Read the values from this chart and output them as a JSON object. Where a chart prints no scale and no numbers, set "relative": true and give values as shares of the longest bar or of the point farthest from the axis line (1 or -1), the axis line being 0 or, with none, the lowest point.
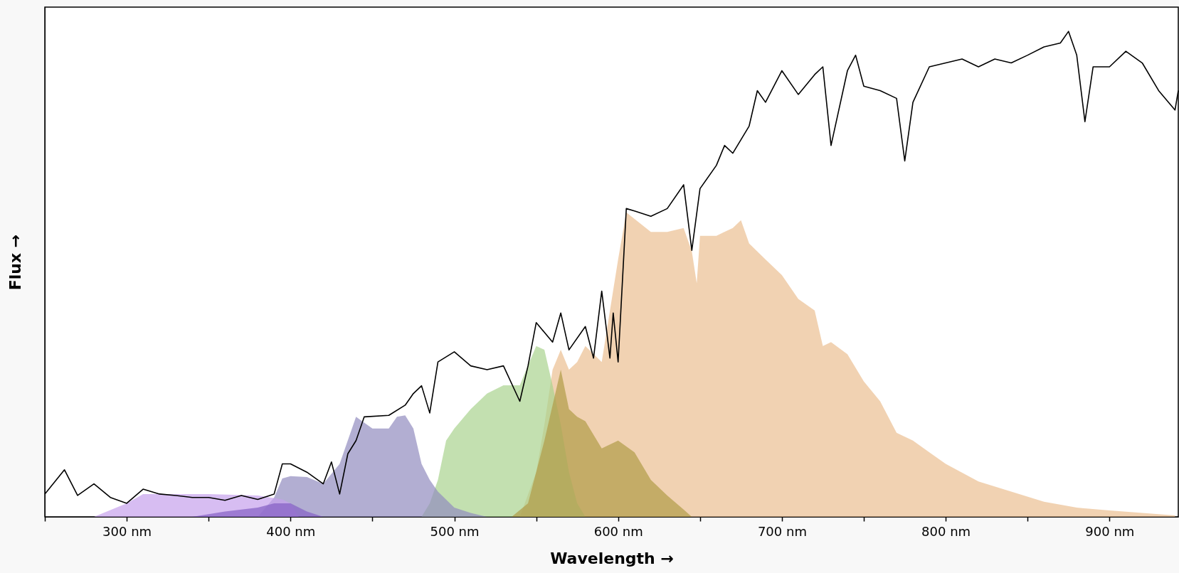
{
  "chart_data": {
    "type": "area",
    "xlabel": "Wavelength →",
    "ylabel": "Flux →",
    "relative": true,
    "xlim": [
      250,
      942
    ],
    "xticks": [
      {
        "value": 250,
        "label": null
      },
      {
        "value": 300,
        "label": "300 nm"
      },
      {
        "value": 350,
        "label": null
      },
      {
        "value": 400,
        "label": "400 nm"
      },
      {
        "value": 450,
        "label": null
      },
      {
        "value": 500,
        "label": "500 nm"
      },
      {
        "value": 550,
        "label": null
      },
      {
        "value": 600,
        "label": "600 nm"
      },
      {
        "value": 650,
        "label": null
      },
      {
        "value": 700,
        "label": "700 nm"
      },
      {
        "value": 750,
        "label": null
      },
      {
        "value": 800,
        "label": "800 nm"
      },
      {
        "value": 850,
        "label": null
      },
      {
        "value": 900,
        "label": "900 nm"
      }
    ],
    "grid": false,
    "legend": false,
    "series": [
      {
        "color": "#f1d2b2",
        "x": [
          540,
          550,
          555,
          560,
          565,
          570,
          575,
          580,
          590,
          600,
          605,
          620,
          630,
          640,
          645,
          648,
          650,
          660,
          670,
          675,
          680,
          690,
          700,
          710,
          720,
          725,
          730,
          740,
          750,
          760,
          770,
          780,
          790,
          800,
          820,
          840,
          860,
          880,
          900,
          920,
          940
        ],
        "values": [
          0,
          0.092,
          0.19,
          0.303,
          0.344,
          0.303,
          0.319,
          0.352,
          0.319,
          0.53,
          0.627,
          0.587,
          0.587,
          0.595,
          0.547,
          0.481,
          0.579,
          0.579,
          0.595,
          0.611,
          0.563,
          0.53,
          0.498,
          0.449,
          0.425,
          0.352,
          0.36,
          0.335,
          0.279,
          0.238,
          0.173,
          0.157,
          0.133,
          0.109,
          0.073,
          0.052,
          0.031,
          0.019,
          0.013,
          0.008,
          0.003
        ]
      },
      {
        "color": "#c3e0b0",
        "x": [
          480,
          485,
          490,
          495,
          500,
          510,
          520,
          530,
          540,
          550,
          555,
          560,
          565,
          570,
          575,
          580
        ],
        "values": [
          0,
          0.028,
          0.076,
          0.157,
          0.182,
          0.222,
          0.254,
          0.271,
          0.271,
          0.352,
          0.344,
          0.271,
          0.19,
          0.092,
          0.028,
          0
        ]
      },
      {
        "color": "#b3aed2",
        "x": [
          380,
          390,
          395,
          400,
          410,
          420,
          430,
          440,
          450,
          460,
          465,
          470,
          475,
          480,
          485,
          490,
          500,
          510,
          520
        ],
        "values": [
          0,
          0.04,
          0.079,
          0.084,
          0.082,
          0.068,
          0.109,
          0.206,
          0.182,
          0.182,
          0.206,
          0.209,
          0.182,
          0.109,
          0.076,
          0.052,
          0.019,
          0.008,
          0
        ]
      },
      {
        "color": "#c8b97e",
        "x": [
          535,
          545,
          555,
          565,
          570,
          575,
          580,
          590,
          600,
          610,
          620,
          630,
          640,
          645
        ],
        "values": [
          0,
          0.028,
          0.157,
          0.303,
          0.222,
          0.206,
          0.197,
          0.141,
          0.157,
          0.133,
          0.076,
          0.044,
          0.015,
          0
        ]
      },
      {
        "color": "#d7bdf2",
        "x": [
          280,
          300,
          310,
          350,
          380,
          395,
          400,
          405
        ],
        "values": [
          0,
          0.028,
          0.047,
          0.047,
          0.044,
          0.036,
          0.028,
          0
        ]
      },
      {
        "color": "#a98fd6",
        "x": [
          340,
          360,
          380,
          390,
          400,
          410,
          420
        ],
        "values": [
          0,
          0.011,
          0.019,
          0.028,
          0.028,
          0.011,
          0
        ]
      },
      {
        "type": "line",
        "color": "#000000",
        "x": [
          250,
          262,
          270,
          280,
          290,
          300,
          310,
          320,
          330,
          340,
          350,
          360,
          370,
          380,
          390,
          395,
          400,
          410,
          420,
          425,
          430,
          435,
          440,
          445,
          460,
          470,
          475,
          480,
          485,
          490,
          500,
          510,
          520,
          530,
          540,
          545,
          550,
          560,
          565,
          570,
          580,
          585,
          590,
          595,
          597,
          600,
          605,
          610,
          620,
          630,
          640,
          645,
          650,
          660,
          665,
          670,
          680,
          685,
          690,
          700,
          710,
          720,
          725,
          730,
          740,
          745,
          750,
          760,
          770,
          775,
          780,
          790,
          800,
          810,
          820,
          830,
          840,
          850,
          860,
          870,
          875,
          880,
          885,
          890,
          900,
          910,
          920,
          930,
          940,
          942
        ],
        "values": [
          0.047,
          0.097,
          0.044,
          0.068,
          0.04,
          0.028,
          0.057,
          0.047,
          0.044,
          0.04,
          0.04,
          0.034,
          0.044,
          0.036,
          0.047,
          0.109,
          0.109,
          0.092,
          0.068,
          0.113,
          0.047,
          0.13,
          0.157,
          0.206,
          0.209,
          0.23,
          0.254,
          0.27,
          0.214,
          0.319,
          0.34,
          0.311,
          0.303,
          0.311,
          0.238,
          0.311,
          0.4,
          0.36,
          0.42,
          0.344,
          0.392,
          0.327,
          0.465,
          0.327,
          0.42,
          0.319,
          0.635,
          0.63,
          0.619,
          0.635,
          0.684,
          0.549,
          0.676,
          0.724,
          0.765,
          0.749,
          0.805,
          0.878,
          0.854,
          0.919,
          0.87,
          0.911,
          0.927,
          0.765,
          0.919,
          0.951,
          0.887,
          0.878,
          0.862,
          0.733,
          0.854,
          0.927,
          0.935,
          0.943,
          0.927,
          0.943,
          0.935,
          0.951,
          0.968,
          0.976,
          1,
          0.951,
          0.814,
          0.927,
          0.927,
          0.959,
          0.935,
          0.878,
          0.838,
          0.878
        ]
      }
    ]
  }
}
